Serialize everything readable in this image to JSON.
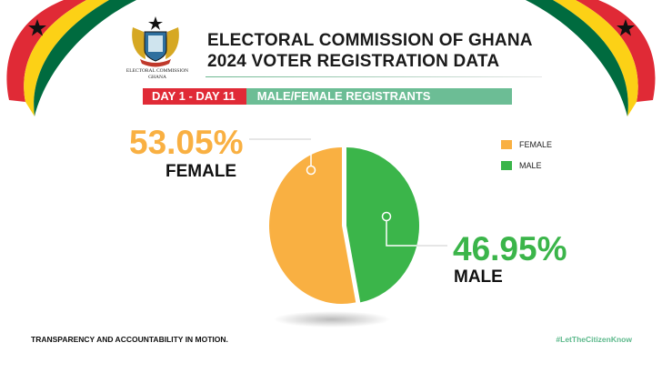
{
  "header": {
    "title_line1": "ELECTORAL COMMISSION OF GHANA",
    "title_line2": "2024 VOTER REGISTRATION DATA",
    "logo_text_line1": "ELECTORAL COMMISSION",
    "logo_text_line2": "GHANA"
  },
  "banner": {
    "period": "DAY 1 - DAY 11",
    "subject": "MALE/FEMALE REGISTRANTS"
  },
  "chart_data": {
    "type": "pie",
    "title": "MALE/FEMALE REGISTRANTS",
    "categories": [
      "FEMALE",
      "MALE"
    ],
    "values": [
      53.05,
      46.95
    ],
    "value_labels": [
      "53.05%",
      "46.95%"
    ],
    "colors": [
      "#f9b042",
      "#3bb54a"
    ],
    "legend_placement": "right"
  },
  "footer": {
    "tagline": "TRANSPARENCY AND ACCOUNTABILITY IN MOTION.",
    "hashtag": "#LetTheCitizenKnow"
  },
  "colors": {
    "red": "#e02a36",
    "gold": "#fcd116",
    "green": "#006b3f",
    "accent_green": "#6cbd95"
  }
}
